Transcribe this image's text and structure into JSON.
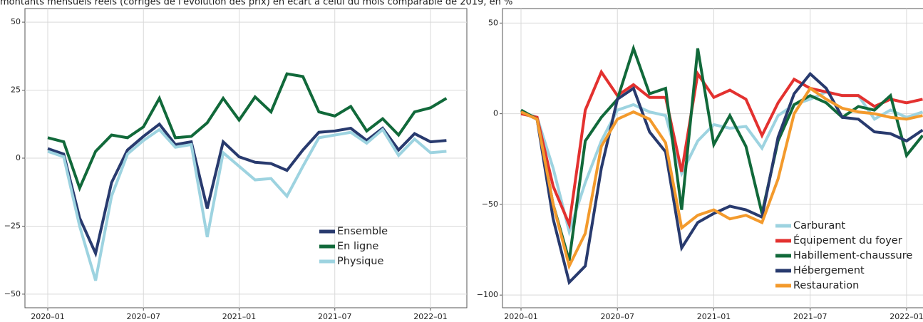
{
  "header": {
    "subtitle": "montants mensuels réels (corrigés de l'évolution des prix) en écart à celui du mois comparable de 2019, en %"
  },
  "chart_data": [
    {
      "type": "line",
      "categories": [
        "2020–01",
        null,
        null,
        null,
        null,
        null,
        "2020–07",
        null,
        null,
        null,
        null,
        null,
        "2021–01",
        null,
        null,
        null,
        null,
        null,
        "2021–07",
        null,
        null,
        null,
        null,
        null,
        "2022–01",
        null
      ],
      "ylim": [
        -55,
        55
      ],
      "yticks": [
        {
          "value": -50,
          "label": "−50"
        },
        {
          "value": -25,
          "label": "−25"
        },
        0,
        25,
        50
      ],
      "grid": true,
      "legend": "lower right",
      "series": [
        {
          "name": "Ensemble",
          "color": "#283a6e",
          "values": [
            3.5,
            1.5,
            -22,
            -35,
            -9,
            3,
            8,
            12.5,
            5,
            6,
            -18.5,
            6,
            0.5,
            -1.5,
            -2,
            -4.5,
            3,
            9.5,
            10,
            11,
            6.5,
            11,
            3,
            9,
            6,
            6.5
          ]
        },
        {
          "name": "En ligne",
          "color": "#11693a",
          "values": [
            7.5,
            6,
            -11,
            2.5,
            8.5,
            7.5,
            11.5,
            22,
            7.5,
            8,
            13,
            22,
            14,
            22.5,
            17,
            31,
            30,
            17,
            15.5,
            19,
            10,
            14.5,
            8.5,
            17,
            18.5,
            22
          ]
        },
        {
          "name": "Physique",
          "color": "#9dd3e0",
          "values": [
            2.5,
            0.5,
            -25,
            -45,
            -14,
            1.5,
            6.5,
            10.5,
            4,
            5,
            -29,
            2,
            -3,
            -8,
            -7.5,
            -14,
            -3,
            7.5,
            8.5,
            9.5,
            5.5,
            10.5,
            1,
            7,
            2,
            2.5
          ]
        }
      ]
    },
    {
      "type": "line",
      "categories": [
        "2020–01",
        null,
        null,
        null,
        null,
        null,
        "2020–07",
        null,
        null,
        null,
        null,
        null,
        "2021–01",
        null,
        null,
        null,
        null,
        null,
        "2021–07",
        null,
        null,
        null,
        null,
        null,
        "2022–01",
        null
      ],
      "ylim": [
        -107,
        58
      ],
      "yticks": [
        {
          "value": -100,
          "label": "−100"
        },
        {
          "value": -50,
          "label": "−50"
        },
        0,
        50
      ],
      "grid": true,
      "legend": "lower right",
      "series": [
        {
          "name": "Carburant",
          "color": "#9dd3e0",
          "values": [
            1,
            -2,
            -30,
            -65,
            -38,
            -15,
            2,
            5,
            1,
            -1,
            -33,
            -15,
            -6,
            -8,
            -7,
            -19,
            -1,
            5,
            8,
            12,
            10,
            10,
            -3,
            2,
            -2,
            1
          ]
        },
        {
          "name": "Équipement du foyer",
          "color": "#e3312f",
          "values": [
            0,
            -2,
            -40,
            -61,
            2,
            23,
            10,
            16,
            9,
            9,
            -32,
            22,
            9,
            13,
            8,
            -12,
            6,
            19,
            14,
            12,
            10,
            10,
            4,
            8,
            6,
            8
          ]
        },
        {
          "name": "Habillement-chaussure",
          "color": "#11693a",
          "values": [
            2,
            -3,
            -50,
            -81,
            -15,
            -2,
            8,
            36,
            11,
            14,
            -53,
            36,
            -17,
            -1,
            -18,
            -55,
            -15,
            5,
            10,
            6,
            -2,
            4,
            2,
            10,
            -23,
            -12
          ]
        },
        {
          "name": "Hébergement",
          "color": "#283a6e",
          "values": [
            1,
            -3,
            -58,
            -93,
            -84,
            -30,
            8,
            14,
            -10,
            -21,
            -74,
            -60,
            -55,
            -51,
            -53,
            -57,
            -13,
            11,
            22,
            14,
            -2,
            -3,
            -10,
            -11,
            -15,
            -9
          ]
        },
        {
          "name": "Restauration",
          "color": "#f39a2c",
          "values": [
            1,
            -3,
            -50,
            -84,
            -66,
            -18,
            -3,
            1,
            -3,
            -16,
            -63,
            -56,
            -53,
            -58,
            -56,
            -60,
            -36,
            0,
            14,
            8,
            3,
            1,
            0,
            -2,
            -3,
            -1
          ]
        }
      ]
    }
  ]
}
